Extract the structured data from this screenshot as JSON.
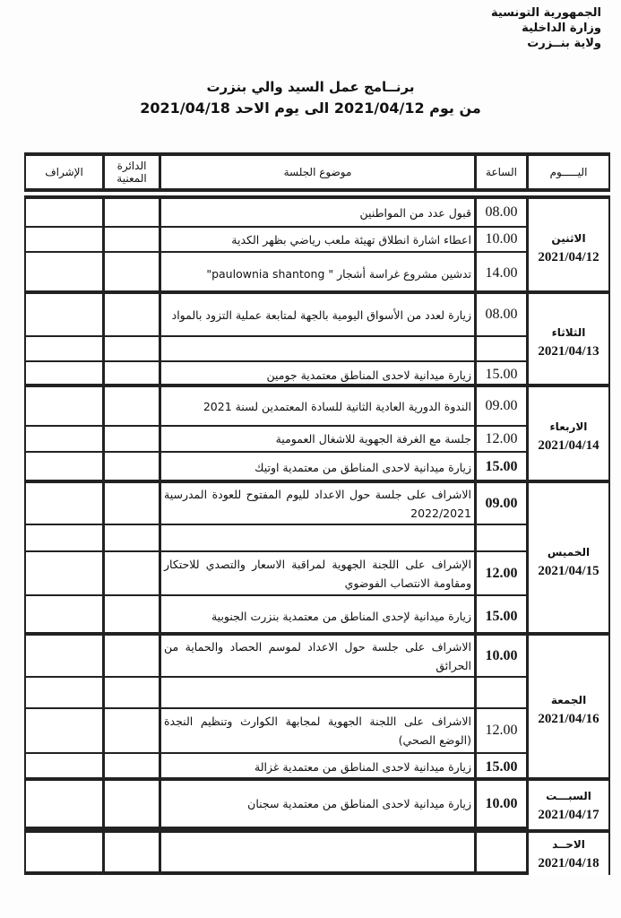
{
  "letterhead": [
    "الجمهورية التونسية",
    "وزارة الداخلية",
    "ولاية بنــزرت"
  ],
  "title": "برنــامج عمل السيد والي بنزرت",
  "subtitle": "من يوم 2021/04/12  الى يوم  الاحد 2021/04/18",
  "columns": {
    "day": "اليـــــوم",
    "time": "الساعة",
    "topic": "موضوع الجلسة",
    "department": "الدائرة المعنية",
    "supervision": "الإشراف"
  },
  "days": [
    {
      "name": "الاثنين",
      "date": "2021/04/12",
      "sessions": [
        {
          "time": "08.00",
          "topic": "قبول عدد من المواطنين"
        },
        {
          "time": "10.00",
          "topic": "اعطاء اشارة انطلاق تهيئة ملعب رياضي بظهر الكدية"
        },
        {
          "time": "14.00",
          "topic": "تدشين مشروع غراسة أشجار \" paulownia shantong\""
        }
      ]
    },
    {
      "name": "الثلاثاء",
      "date": "2021/04/13",
      "sessions": [
        {
          "time": "08.00",
          "topic": "زيارة لعدد من الأسواق اليومية بالجهة لمتابعة عملية التزود بالمواد"
        },
        {
          "time": "",
          "topic": ""
        },
        {
          "time": "15.00",
          "topic": "زيارة ميدانية لاحدى المناطق معتمدية جومين"
        }
      ]
    },
    {
      "name": "الاربعاء",
      "date": "2021/04/14",
      "sessions": [
        {
          "time": "09.00",
          "topic": "الندوة الدورية العادية الثانية للسادة المعتمدين لسنة 2021"
        },
        {
          "time": "12.00",
          "topic": "جلسة مع الغرفة الجهوية للاشغال العمومية"
        },
        {
          "time": "15.00",
          "topic": "زيارة ميدانية لاحدى المناطق من معتمدية اوتيك"
        }
      ]
    },
    {
      "name": "الخميس",
      "date": "2021/04/15",
      "sessions": [
        {
          "time": "09.00",
          "topic": "الاشراف على جلسة حول الاعداد لليوم المفتوح للعودة المدرسية 2022/2021"
        },
        {
          "time": "",
          "topic": ""
        },
        {
          "time": "12.00",
          "topic": "الإشراف على اللجنة الجهوية لمراقبة الاسعار والتصدي للاحتكار ومقاومة الانتصاب الفوضوي"
        },
        {
          "time": "15.00",
          "topic": "زيارة ميدانية لإحدى المناطق من معتمدية بنزرت الجنوبية"
        }
      ]
    },
    {
      "name": "الجمعة",
      "date": "2021/04/16",
      "sessions": [
        {
          "time": "10.00",
          "topic": "الاشراف على جلسة حول الاعداد لموسم الحصاد والحماية من الحرائق"
        },
        {
          "time": "",
          "topic": ""
        },
        {
          "time": "12.00",
          "topic": "الاشراف على اللجنة الجهوية لمجابهة الكوارث وتنظيم النجدة (الوضع الصحي)"
        },
        {
          "time": "15.00",
          "topic": "زيارة ميدانية لاحدى المناطق من معتمدية غزالة"
        }
      ]
    },
    {
      "name": "السبـــت",
      "date": "2021/04/17",
      "sessions": [
        {
          "time": "10.00",
          "topic": "زيارة ميدانية لاحدى المناطق من معتمدية سجنان"
        }
      ]
    },
    {
      "name": "الاحــد",
      "date": "2021/04/18",
      "sessions": [
        {
          "time": "",
          "topic": ""
        }
      ]
    }
  ]
}
